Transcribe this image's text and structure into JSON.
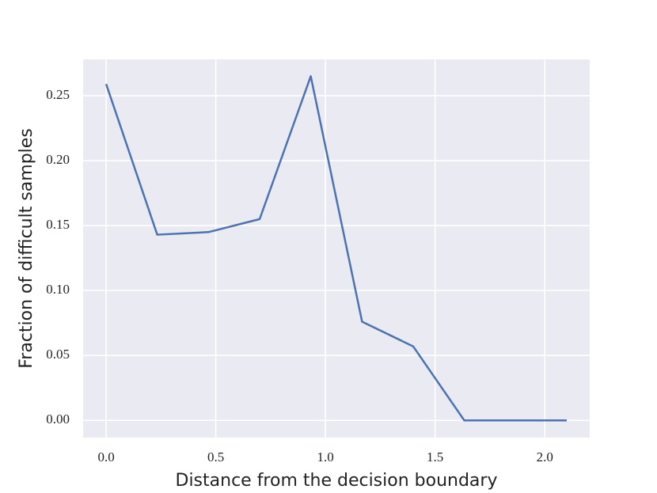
{
  "chart_data": {
    "type": "line",
    "xlabel": "Distance from the decision boundary",
    "ylabel": "Fraction of difficult samples",
    "x": [
      0,
      0.233,
      0.467,
      0.7,
      0.933,
      1.167,
      1.4,
      1.633,
      1.867,
      2.1
    ],
    "values": [
      0.259,
      0.143,
      0.145,
      0.155,
      0.265,
      0.076,
      0.057,
      0,
      0,
      0
    ],
    "color": "#4c72b0",
    "xlim": [
      -0.105,
      2.205
    ],
    "ylim": [
      -0.01325,
      0.278
    ],
    "xticks": [
      {
        "value": 0,
        "label": "0.0"
      },
      0.5,
      {
        "value": 1,
        "label": "1.0"
      },
      1.5,
      {
        "value": 2,
        "label": "2.0"
      }
    ],
    "yticks": [
      {
        "value": 0,
        "label": "0.00"
      },
      0.05,
      {
        "value": 0.1,
        "label": "0.10"
      },
      0.15,
      {
        "value": 0.2,
        "label": "0.20"
      },
      0.25
    ],
    "grid": true
  }
}
